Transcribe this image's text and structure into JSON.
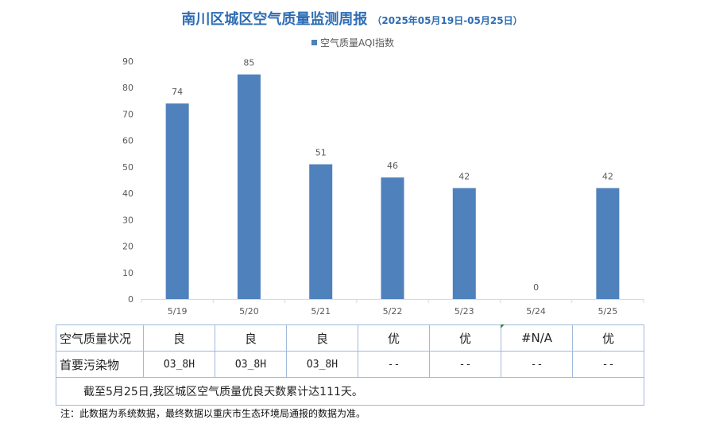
{
  "header": {
    "title": "南川区城区空气质量监测周报",
    "date_range": "（2025年05月19日-05月25日）"
  },
  "chart_data": {
    "type": "bar",
    "categories": [
      "5/19",
      "5/20",
      "5/21",
      "5/22",
      "5/23",
      "5/24",
      "5/25"
    ],
    "series": [
      {
        "name": "空气质量AQI指数",
        "values": [
          74,
          85,
          51,
          46,
          42,
          0,
          42
        ],
        "color": "#4f81bd"
      }
    ],
    "ylim": [
      0,
      90
    ],
    "yticks": [
      0,
      10,
      20,
      30,
      40,
      50,
      60,
      70,
      80,
      90
    ],
    "legend": "top-center",
    "grid": false
  },
  "table": {
    "rows": [
      {
        "label": "空气质量状况",
        "values": [
          "良",
          "良",
          "良",
          "优",
          "优",
          "#N/A",
          "优"
        ]
      },
      {
        "label": "首要污染物",
        "values": [
          "O3_8H",
          "O3_8H",
          "O3_8H",
          "--",
          "--",
          "--",
          "--"
        ]
      }
    ],
    "summary": "截至5月25日,我区城区空气质量优良天数累计达111天。"
  },
  "note": "注：此数据为系统数据，最终数据以重庆市生态环境局通报的数据为准。"
}
